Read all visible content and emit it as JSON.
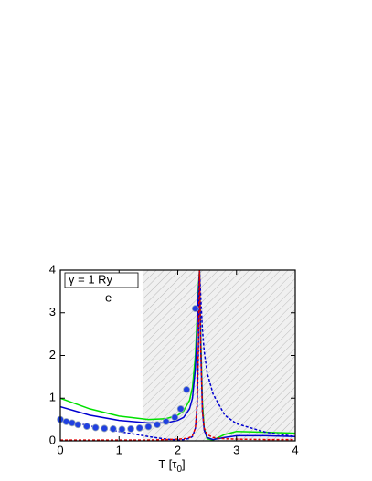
{
  "chart_data": {
    "type": "line",
    "annotations": [
      "γ = 1 Ry",
      "e"
    ],
    "x_label": [
      "T [τ",
      "0",
      "]"
    ],
    "xlim": [
      0,
      4
    ],
    "xticks": [
      0,
      1,
      2,
      3,
      4
    ],
    "ylim": [
      0,
      4
    ],
    "yticks": [
      0,
      1,
      2,
      3,
      4
    ],
    "shaded_xrange": [
      1.4,
      4
    ],
    "x": [
      0,
      0.5,
      1,
      1.5,
      1.8,
      2,
      2.1,
      2.2,
      2.25,
      2.3,
      2.33,
      2.35,
      2.37,
      2.39,
      2.42,
      2.45,
      2.5,
      2.6,
      2.8,
      3,
      3.5,
      4
    ],
    "series": [
      {
        "color": "#00e000",
        "dash": false,
        "values": [
          1.0,
          0.75,
          0.58,
          0.5,
          0.52,
          0.6,
          0.7,
          0.95,
          1.25,
          2.0,
          2.9,
          3.6,
          4.0,
          2.5,
          0.9,
          0.3,
          0.05,
          0.02,
          0.15,
          0.22,
          0.2,
          0.18
        ]
      },
      {
        "color": "#0000d0",
        "dash": false,
        "values": [
          0.8,
          0.6,
          0.48,
          0.42,
          0.42,
          0.48,
          0.55,
          0.75,
          1.0,
          1.7,
          2.6,
          3.4,
          4.0,
          2.2,
          0.7,
          0.25,
          0.08,
          0.03,
          0.08,
          0.12,
          0.12,
          0.1
        ]
      },
      {
        "color": "#0000d0",
        "dash": true,
        "values": [
          0.5,
          0.35,
          0.22,
          0.1,
          0.04,
          0.02,
          0.03,
          0.06,
          0.1,
          0.3,
          0.8,
          2.0,
          4.0,
          3.4,
          2.6,
          2.1,
          1.6,
          1.1,
          0.6,
          0.4,
          0.2,
          0.1
        ]
      },
      {
        "color": "#e00000",
        "dash": true,
        "values": [
          0.02,
          0.02,
          0.02,
          0.02,
          0.03,
          0.04,
          0.05,
          0.08,
          0.12,
          0.3,
          0.9,
          2.2,
          4.0,
          2.2,
          0.7,
          0.3,
          0.15,
          0.08,
          0.05,
          0.04,
          0.03,
          0.03
        ]
      }
    ],
    "scatter": {
      "color": "#2040e0",
      "x": [
        0,
        0.1,
        0.2,
        0.3,
        0.45,
        0.6,
        0.75,
        0.9,
        1.05,
        1.2,
        1.35,
        1.5,
        1.65,
        1.8,
        1.95,
        2.05,
        2.15,
        2.3
      ],
      "values": [
        0.5,
        0.45,
        0.42,
        0.38,
        0.34,
        0.31,
        0.29,
        0.28,
        0.27,
        0.28,
        0.3,
        0.33,
        0.38,
        0.45,
        0.55,
        0.75,
        1.2,
        3.1
      ]
    }
  }
}
